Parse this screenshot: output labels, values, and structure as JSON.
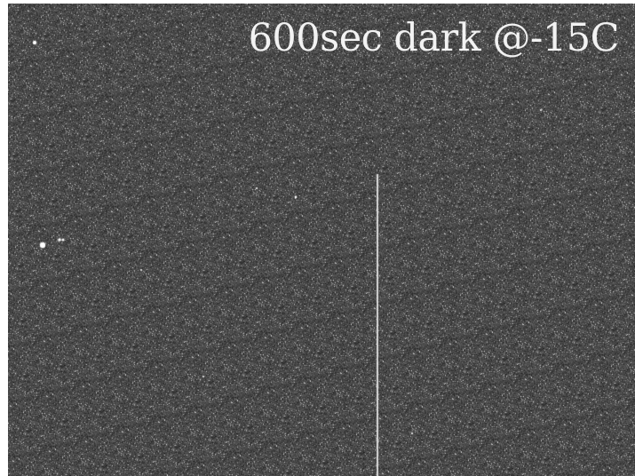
{
  "caption": {
    "text": "600sec dark @-15C"
  },
  "image": {
    "description_hint": "dark-frame",
    "background_color": "#4a4a4a",
    "noise_color_light": "#d8d8d8",
    "noise_color_dark": "#2e2e2e",
    "hot_pixel_color": "#ffffff"
  }
}
